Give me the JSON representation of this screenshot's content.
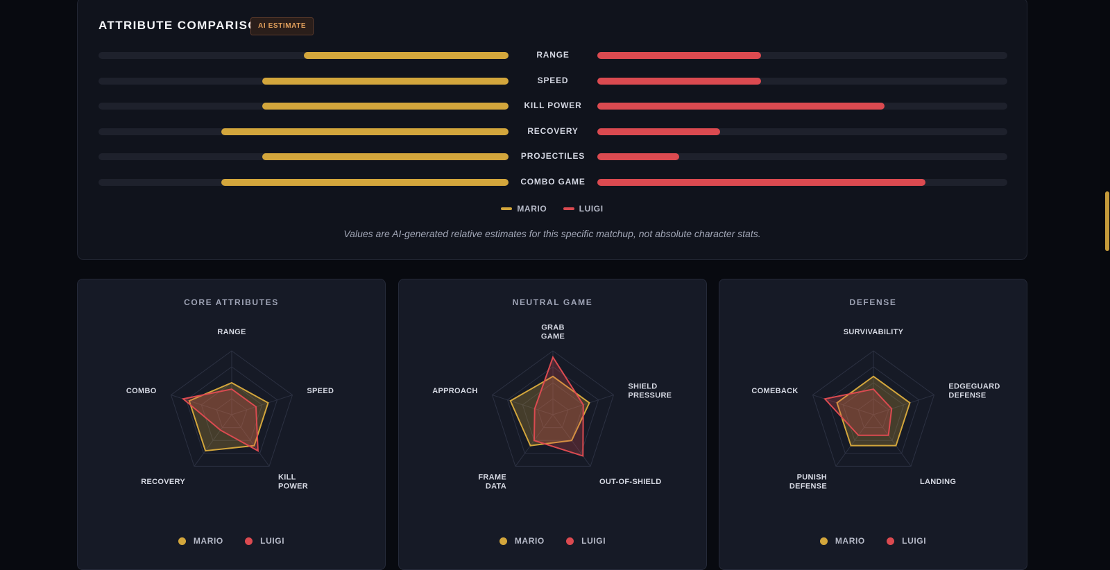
{
  "attribute_comparison": {
    "title": "ATTRIBUTE COMPARISON",
    "badge": "AI ESTIMATE",
    "rows": [
      {
        "label": "RANGE",
        "mario": 0.5,
        "luigi": 0.4
      },
      {
        "label": "SPEED",
        "mario": 0.6,
        "luigi": 0.4
      },
      {
        "label": "KILL POWER",
        "mario": 0.6,
        "luigi": 0.7
      },
      {
        "label": "RECOVERY",
        "mario": 0.7,
        "luigi": 0.3
      },
      {
        "label": "PROJECTILES",
        "mario": 0.6,
        "luigi": 0.2
      },
      {
        "label": "COMBO GAME",
        "mario": 0.7,
        "luigi": 0.8
      }
    ],
    "legend": {
      "mario": "MARIO",
      "luigi": "LUIGI"
    },
    "note": "Values are AI-generated relative estimates for this specific matchup, not absolute character stats."
  },
  "colors": {
    "mario": "#d3a63c",
    "luigi": "#db4a50"
  },
  "radars": [
    {
      "title": "CORE ATTRIBUTES",
      "axes": [
        [
          "RANGE"
        ],
        [
          "SPEED"
        ],
        [
          "KILL",
          "POWER"
        ],
        [
          "RECOVERY"
        ],
        [
          "COMBO"
        ]
      ],
      "mario": [
        0.5,
        0.6,
        0.6,
        0.7,
        0.7
      ],
      "luigi": [
        0.4,
        0.4,
        0.7,
        0.3,
        0.8
      ]
    },
    {
      "title": "NEUTRAL GAME",
      "axes": [
        [
          "GRAB",
          "GAME"
        ],
        [
          "SHIELD",
          "PRESSURE"
        ],
        [
          "OUT-OF-SHIELD"
        ],
        [
          "FRAME",
          "DATA"
        ],
        [
          "APPROACH"
        ]
      ],
      "mario": [
        0.6,
        0.6,
        0.5,
        0.6,
        0.7
      ],
      "luigi": [
        0.9,
        0.5,
        0.8,
        0.5,
        0.3
      ]
    },
    {
      "title": "DEFENSE",
      "axes": [
        [
          "SURVIVABILITY"
        ],
        [
          "EDGEGUARD",
          "DEFENSE"
        ],
        [
          "LANDING"
        ],
        [
          "PUNISH",
          "DEFENSE"
        ],
        [
          "COMEBACK"
        ]
      ],
      "mario": [
        0.6,
        0.6,
        0.6,
        0.6,
        0.6
      ],
      "luigi": [
        0.4,
        0.3,
        0.4,
        0.4,
        0.8
      ]
    }
  ],
  "radar_legend": {
    "mario": "MARIO",
    "luigi": "LUIGI"
  }
}
